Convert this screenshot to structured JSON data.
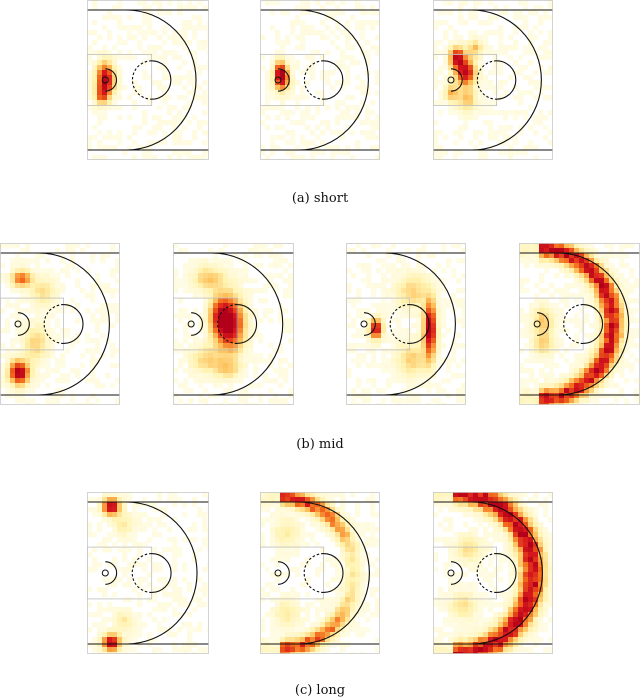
{
  "captions": {
    "a": "(a) short",
    "b": "(b) mid",
    "c": "(c) long"
  },
  "colormap": [
    "#fffef2",
    "#fff3b0",
    "#fdbf5a",
    "#f26a1b",
    "#d7191c",
    "#b2001a"
  ],
  "colormap_name": "white-yellow-orange-red",
  "court": {
    "free_throw_circle": "semi solid toward arc, dashed toward basket",
    "three_point_arc": "solid semicircle",
    "paint": "light grey rectangle",
    "restricted_area": "small arc around basket",
    "basket": "small ring"
  },
  "figure_groups": [
    {
      "caption_key": "a",
      "panels": [
        {
          "id": "short-1",
          "hotspots": [
            {
              "fx": 0.15,
              "fy": 0.5,
              "w": 0.07,
              "h": 0.1,
              "level": 0.95
            },
            {
              "fx": 0.12,
              "fy": 0.6,
              "w": 0.05,
              "h": 0.05,
              "level": 0.45
            }
          ]
        },
        {
          "id": "short-2",
          "hotspots": [
            {
              "fx": 0.17,
              "fy": 0.47,
              "w": 0.05,
              "h": 0.08,
              "level": 1.0
            },
            {
              "fx": 0.22,
              "fy": 0.5,
              "w": 0.05,
              "h": 0.06,
              "level": 0.3
            }
          ]
        },
        {
          "id": "short-3",
          "hotspots": [
            {
              "fx": 0.2,
              "fy": 0.36,
              "w": 0.06,
              "h": 0.06,
              "level": 0.85
            },
            {
              "fx": 0.27,
              "fy": 0.45,
              "w": 0.08,
              "h": 0.08,
              "level": 0.9
            },
            {
              "fx": 0.15,
              "fy": 0.58,
              "w": 0.05,
              "h": 0.05,
              "level": 0.4
            },
            {
              "fx": 0.35,
              "fy": 0.3,
              "w": 0.06,
              "h": 0.05,
              "level": 0.35
            },
            {
              "fx": 0.28,
              "fy": 0.62,
              "w": 0.08,
              "h": 0.07,
              "level": 0.35
            }
          ]
        }
      ]
    },
    {
      "caption_key": "b",
      "panels": [
        {
          "id": "mid-1",
          "hotspots": [
            {
              "fx": 0.18,
              "fy": 0.22,
              "w": 0.08,
              "h": 0.05,
              "level": 0.6
            },
            {
              "fx": 0.16,
              "fy": 0.8,
              "w": 0.08,
              "h": 0.07,
              "level": 1.0
            },
            {
              "fx": 0.3,
              "fy": 0.62,
              "w": 0.1,
              "h": 0.1,
              "level": 0.3
            },
            {
              "fx": 0.35,
              "fy": 0.3,
              "w": 0.1,
              "h": 0.08,
              "level": 0.25
            }
          ]
        },
        {
          "id": "mid-2",
          "hotspots": [
            {
              "fx": 0.47,
              "fy": 0.5,
              "w": 0.11,
              "h": 0.16,
              "level": 1.0
            },
            {
              "fx": 0.38,
              "fy": 0.45,
              "w": 0.08,
              "h": 0.12,
              "level": 0.5
            },
            {
              "fx": 0.3,
              "fy": 0.22,
              "w": 0.12,
              "h": 0.07,
              "level": 0.35
            },
            {
              "fx": 0.28,
              "fy": 0.72,
              "w": 0.12,
              "h": 0.08,
              "level": 0.3
            },
            {
              "fx": 0.45,
              "fy": 0.78,
              "w": 0.1,
              "h": 0.06,
              "level": 0.3
            }
          ]
        },
        {
          "id": "mid-3",
          "hotspots": [
            {
              "fx": 0.25,
              "fy": 0.53,
              "w": 0.05,
              "h": 0.06,
              "level": 0.9
            },
            {
              "fx": 0.7,
              "fy": 0.53,
              "w": 0.05,
              "h": 0.17,
              "level": 1.0
            },
            {
              "fx": 0.55,
              "fy": 0.3,
              "w": 0.12,
              "h": 0.1,
              "level": 0.3
            },
            {
              "fx": 0.55,
              "fy": 0.72,
              "w": 0.12,
              "h": 0.1,
              "level": 0.3
            }
          ]
        },
        {
          "id": "mid-4",
          "hotspots": [
            {
              "fx": 0.2,
              "fy": 0.48,
              "w": 0.08,
              "h": 0.08,
              "level": 0.35
            },
            {
              "fx": 0.2,
              "fy": 0.62,
              "w": 0.08,
              "h": 0.07,
              "level": 0.3
            }
          ],
          "arc": {
            "rfrac": 0.72,
            "cx": 0.15,
            "thickness": 0.06,
            "level": 0.9
          }
        }
      ]
    },
    {
      "caption_key": "c",
      "panels": [
        {
          "id": "long-1",
          "hotspots": [
            {
              "fx": 0.2,
              "fy": 0.09,
              "w": 0.07,
              "h": 0.05,
              "level": 0.95
            },
            {
              "fx": 0.2,
              "fy": 0.93,
              "w": 0.07,
              "h": 0.05,
              "level": 0.95
            },
            {
              "fx": 0.3,
              "fy": 0.2,
              "w": 0.08,
              "h": 0.06,
              "level": 0.2
            },
            {
              "fx": 0.3,
              "fy": 0.8,
              "w": 0.08,
              "h": 0.06,
              "level": 0.2
            }
          ]
        },
        {
          "id": "long-2",
          "hotspots": [
            {
              "fx": 0.22,
              "fy": 0.25,
              "w": 0.1,
              "h": 0.08,
              "level": 0.2
            },
            {
              "fx": 0.22,
              "fy": 0.75,
              "w": 0.1,
              "h": 0.08,
              "level": 0.2
            }
          ],
          "arc": {
            "rfrac": 0.72,
            "cx": 0.15,
            "thickness": 0.05,
            "level": 0.85,
            "ends_only": true
          }
        },
        {
          "id": "long-3",
          "hotspots": [
            {
              "fx": 0.3,
              "fy": 0.35,
              "w": 0.1,
              "h": 0.08,
              "level": 0.25
            },
            {
              "fx": 0.25,
              "fy": 0.7,
              "w": 0.1,
              "h": 0.08,
              "level": 0.25
            }
          ],
          "arc": {
            "rfrac": 0.78,
            "cx": 0.15,
            "thickness": 0.07,
            "level": 0.95
          }
        }
      ]
    }
  ]
}
